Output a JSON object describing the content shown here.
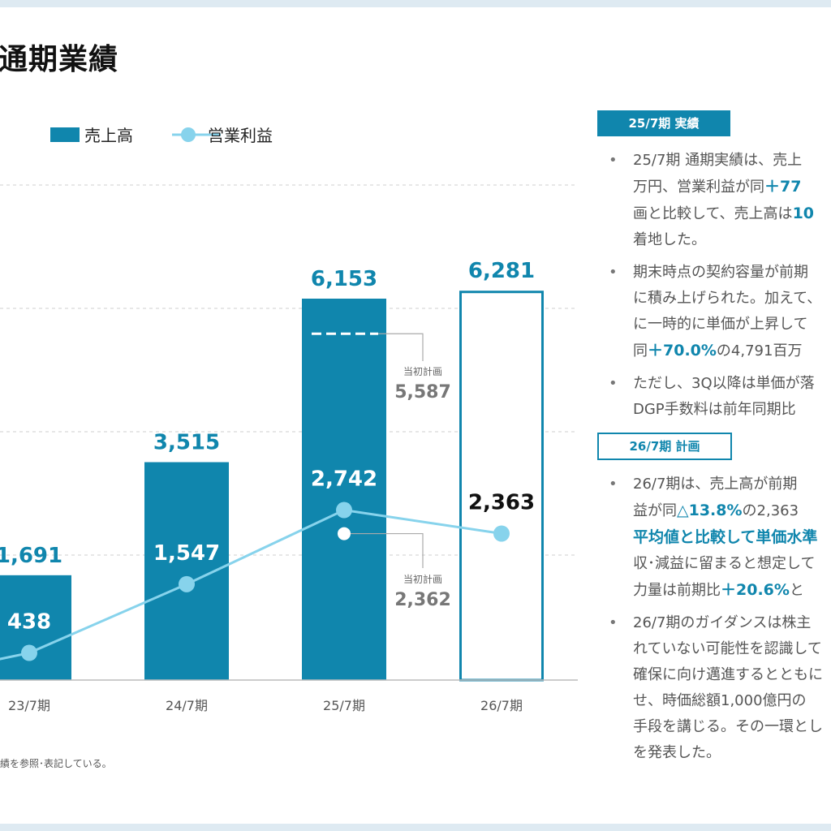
{
  "page": {
    "title": "通期業績",
    "footnote": "績を参照･表記している。",
    "colors": {
      "bar": "#1086ad",
      "line": "#87d3ec",
      "accent": "#1086ad",
      "gray": "#777777"
    }
  },
  "chart_data": {
    "type": "bar",
    "categories": [
      "23/7期",
      "24/7期",
      "25/7期",
      "26/7期"
    ],
    "series": [
      {
        "name": "売上高",
        "type": "bar",
        "values": [
          1691,
          3515,
          6153,
          6281
        ],
        "labels": [
          "1,691",
          "3,515",
          "6,153",
          "6,281"
        ],
        "last_is_plan": true
      },
      {
        "name": "営業利益",
        "type": "line",
        "values": [
          438,
          1547,
          2742,
          2363
        ],
        "labels": [
          "438",
          "1,547",
          "2,742",
          "2,363"
        ]
      }
    ],
    "annotations": [
      {
        "category": "25/7期",
        "series": "売上高",
        "label": "当初計画",
        "value": 5587,
        "value_label": "5,587"
      },
      {
        "category": "25/7期",
        "series": "営業利益",
        "label": "当初計画",
        "value": 2362,
        "value_label": "2,362"
      }
    ],
    "legend": {
      "position": "top-left"
    },
    "grid": true
  },
  "sidebar": {
    "actual_tag": "25/7期 実績",
    "plan_tag": "26/7期 計画",
    "actual_bullets": [
      [
        {
          "t": "25/7期 通期実績は、売上"
        }
      ],
      [
        {
          "t": "万円、営業利益が同"
        },
        {
          "t": "＋77",
          "hl": true
        }
      ],
      [
        {
          "t": "画と比較して、売上高は"
        },
        {
          "t": "10",
          "hl": true
        }
      ],
      [
        {
          "t": "着地した。"
        }
      ],
      [
        {
          "t": "期末時点の契約容量が前期"
        }
      ],
      [
        {
          "t": "に積み上げられた。加えて、"
        }
      ],
      [
        {
          "t": "に一時的に単価が上昇して"
        }
      ],
      [
        {
          "t": "同"
        },
        {
          "t": "＋70.0%",
          "hl": true
        },
        {
          "t": "の4,791百万"
        }
      ],
      [
        {
          "t": "ただし、3Q以降は単価が落"
        }
      ],
      [
        {
          "t": "DGP手数料は前年同期比"
        }
      ]
    ],
    "plan_bullets": [
      [
        {
          "t": "26/7期は、売上高が前期"
        }
      ],
      [
        {
          "t": "益が同"
        },
        {
          "t": "△13.8%",
          "hl": true
        },
        {
          "t": "の2,363"
        }
      ],
      [
        {
          "t": "平均値と比較して単価水準",
          "hl": true
        }
      ],
      [
        {
          "t": "収･減益に留まると想定して"
        }
      ],
      [
        {
          "t": "力量は前期比"
        },
        {
          "t": "＋20.6%",
          "hl": true
        },
        {
          "t": "と"
        }
      ],
      [
        {
          "t": "26/7期のガイダンスは株主"
        }
      ],
      [
        {
          "t": "れていない可能性を認識して"
        }
      ],
      [
        {
          "t": "確保に向け邁進するとともに"
        }
      ],
      [
        {
          "t": "せ、時価総額1,000億円の"
        }
      ],
      [
        {
          "t": "手段を講じる。その一環とし"
        }
      ],
      [
        {
          "t": "を発表した。"
        }
      ]
    ]
  }
}
